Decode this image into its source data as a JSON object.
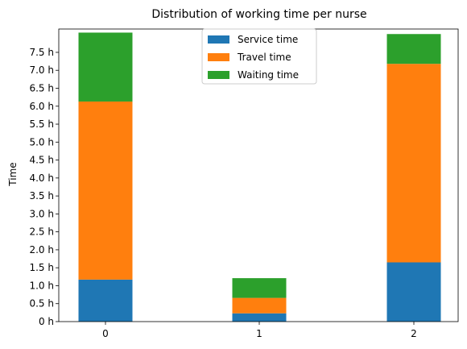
{
  "chart_data": {
    "type": "bar",
    "stacked": true,
    "title": "Distribution of working time per nurse",
    "xlabel": "",
    "ylabel": "Time",
    "categories": [
      "0",
      "1",
      "2"
    ],
    "series": [
      {
        "name": "Service time",
        "color": "#1f77b4",
        "values": [
          1.17,
          0.23,
          1.65
        ]
      },
      {
        "name": "Travel time",
        "color": "#ff7f0e",
        "values": [
          4.96,
          0.43,
          5.53
        ]
      },
      {
        "name": "Waiting time",
        "color": "#2ca02c",
        "values": [
          1.92,
          0.55,
          0.83
        ]
      }
    ],
    "ylim": [
      0,
      8.15
    ],
    "yticks": [
      {
        "value": 0,
        "label": "0 h"
      },
      {
        "value": 0.5,
        "label": "0.5 h"
      },
      {
        "value": 1.0,
        "label": "1.0 h"
      },
      {
        "value": 1.5,
        "label": "1.5 h"
      },
      {
        "value": 2.0,
        "label": "2.0 h"
      },
      {
        "value": 2.5,
        "label": "2.5 h"
      },
      {
        "value": 3.0,
        "label": "3.0 h"
      },
      {
        "value": 3.5,
        "label": "3.5 h"
      },
      {
        "value": 4.0,
        "label": "4.0 h"
      },
      {
        "value": 4.5,
        "label": "4.5 h"
      },
      {
        "value": 5.0,
        "label": "5.0 h"
      },
      {
        "value": 5.5,
        "label": "5.5 h"
      },
      {
        "value": 6.0,
        "label": "6.0 h"
      },
      {
        "value": 6.5,
        "label": "6.5 h"
      },
      {
        "value": 7.0,
        "label": "7.0 h"
      },
      {
        "value": 7.5,
        "label": "7.5 h"
      }
    ],
    "grid": false,
    "legend_position": "top-center"
  }
}
